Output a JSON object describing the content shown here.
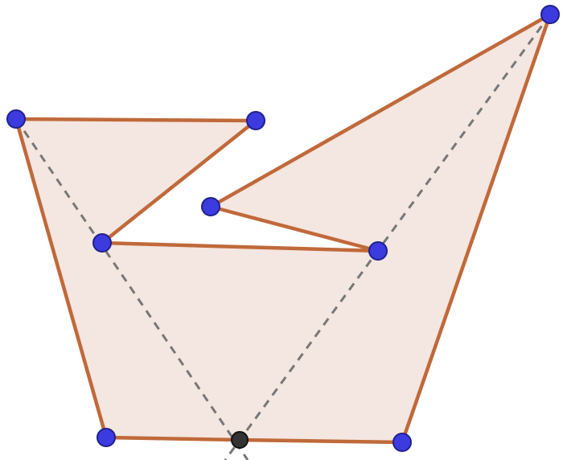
{
  "diagram": {
    "type": "geometry-construction",
    "colors": {
      "fill": "#f4e6e0",
      "edge": "#c0693a",
      "vertex": "#3b3be0",
      "guide": "#777777",
      "intersection": "#333333"
    },
    "vertex_count": 9,
    "polygon_edge_count": 9,
    "guide_line_count": 2,
    "intersection_count": 1
  }
}
